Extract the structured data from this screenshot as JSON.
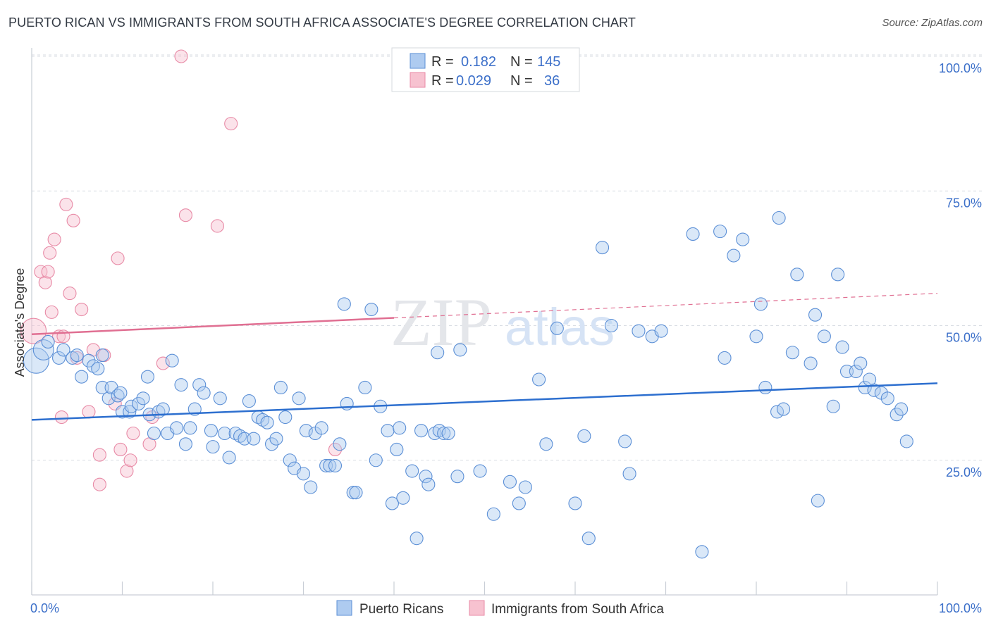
{
  "title": "PUERTO RICAN VS IMMIGRANTS FROM SOUTH AFRICA ASSOCIATE'S DEGREE CORRELATION CHART",
  "source": "Source: ZipAtlas.com",
  "watermark": {
    "zip": "ZIP",
    "atlas": "atlas"
  },
  "colors": {
    "blue_fill": "#aecbf0",
    "blue_stroke": "#5b8fd6",
    "blue_line": "#2d6fcf",
    "pink_fill": "#f7c2d0",
    "pink_stroke": "#e88aa6",
    "pink_line": "#e06f92",
    "grid": "#d9dde3",
    "tick_text": "#3b6fc9"
  },
  "legend": {
    "rows": [
      {
        "r_label": "R =",
        "r_value": "0.182",
        "n_label": "N =",
        "n_value": "145",
        "color": "blue"
      },
      {
        "r_label": "R =",
        "r_value": "0.029",
        "n_label": "N =",
        "n_value": "36",
        "color": "pink"
      }
    ]
  },
  "chart_data": {
    "type": "scatter",
    "xlabel": "",
    "ylabel": "Associate's Degree",
    "xlim": [
      0,
      100
    ],
    "ylim": [
      0,
      100
    ],
    "x_ticks": [
      {
        "value": 0,
        "label": "0.0%"
      },
      {
        "value": 100,
        "label": "100.0%"
      }
    ],
    "y_ticks": [
      {
        "value": 25,
        "label": "25.0%"
      },
      {
        "value": 50,
        "label": "50.0%"
      },
      {
        "value": 75,
        "label": "75.0%"
      },
      {
        "value": 100,
        "label": "100.0%"
      }
    ],
    "grid": true,
    "legend_position": "top-center",
    "series": [
      {
        "name": "Puerto Ricans",
        "color": "blue",
        "trend": {
          "x": [
            0,
            100
          ],
          "y": [
            32.5,
            39.3
          ],
          "solid_to": 100
        },
        "points": [
          [
            0.5,
            43.5,
            2
          ],
          [
            1.3,
            45.5,
            1.6
          ],
          [
            1.8,
            47,
            1
          ],
          [
            3,
            44,
            1
          ],
          [
            3.5,
            45.5,
            1
          ],
          [
            4.5,
            44,
            1
          ],
          [
            5,
            44.5,
            1
          ],
          [
            5.5,
            40.5,
            1
          ],
          [
            6.3,
            43.5,
            1
          ],
          [
            6.8,
            42.5,
            1
          ],
          [
            7.3,
            42,
            1
          ],
          [
            7.8,
            44.5,
            1
          ],
          [
            7.8,
            38.5,
            1
          ],
          [
            8.5,
            36.5,
            1
          ],
          [
            8.8,
            38.5,
            1
          ],
          [
            9.5,
            37,
            1
          ],
          [
            9.8,
            37.5,
            1
          ],
          [
            10,
            34,
            1
          ],
          [
            10.8,
            34,
            1
          ],
          [
            11,
            35,
            1
          ],
          [
            11.8,
            35.5,
            1
          ],
          [
            12.3,
            36.5,
            1
          ],
          [
            12.8,
            40.5,
            1
          ],
          [
            13,
            33.5,
            1
          ],
          [
            13.5,
            30,
            1
          ],
          [
            14,
            34,
            1
          ],
          [
            14.5,
            34.5,
            1
          ],
          [
            15,
            30,
            1
          ],
          [
            15.5,
            43.5,
            1
          ],
          [
            16,
            31,
            1
          ],
          [
            16.5,
            39,
            1
          ],
          [
            17,
            28,
            1
          ],
          [
            17.5,
            31,
            1
          ],
          [
            18,
            34.5,
            1
          ],
          [
            18.5,
            39,
            1
          ],
          [
            19,
            37.5,
            1
          ],
          [
            19.8,
            30.5,
            1
          ],
          [
            20,
            27.5,
            1
          ],
          [
            20.8,
            36.5,
            1
          ],
          [
            21.3,
            30,
            1
          ],
          [
            21.8,
            25.5,
            1
          ],
          [
            22.5,
            30,
            1
          ],
          [
            23,
            29.5,
            1
          ],
          [
            23.5,
            29,
            1
          ],
          [
            24,
            36,
            1
          ],
          [
            24.5,
            29,
            1
          ],
          [
            25,
            33,
            1
          ],
          [
            25.5,
            32.5,
            1
          ],
          [
            26,
            32,
            1
          ],
          [
            26.5,
            28,
            1
          ],
          [
            27,
            29,
            1
          ],
          [
            27.5,
            38.5,
            1
          ],
          [
            28,
            33,
            1
          ],
          [
            28.5,
            25,
            1
          ],
          [
            29,
            23.5,
            1
          ],
          [
            29.5,
            36.5,
            1
          ],
          [
            30,
            22.5,
            1
          ],
          [
            30.3,
            30.5,
            1
          ],
          [
            30.8,
            20,
            1
          ],
          [
            31.3,
            30,
            1
          ],
          [
            32,
            31,
            1
          ],
          [
            32.5,
            24,
            1
          ],
          [
            32.9,
            24,
            1
          ],
          [
            33.5,
            24,
            1
          ],
          [
            34,
            28,
            1
          ],
          [
            34.5,
            54,
            1
          ],
          [
            34.8,
            35.5,
            1
          ],
          [
            35.5,
            19,
            1
          ],
          [
            35.8,
            19,
            1
          ],
          [
            36.8,
            38.5,
            1
          ],
          [
            37.5,
            53,
            1
          ],
          [
            38,
            25,
            1
          ],
          [
            38.5,
            35,
            1
          ],
          [
            39.3,
            30.5,
            1
          ],
          [
            39.8,
            17,
            1
          ],
          [
            40.3,
            27,
            1
          ],
          [
            40.6,
            31,
            1
          ],
          [
            41,
            18,
            1
          ],
          [
            42,
            23,
            1
          ],
          [
            42.5,
            10.5,
            1
          ],
          [
            43,
            30.5,
            1
          ],
          [
            43.5,
            22,
            1
          ],
          [
            43.8,
            20.5,
            1
          ],
          [
            44.5,
            30,
            1
          ],
          [
            44.8,
            45,
            1
          ],
          [
            45,
            30.5,
            1
          ],
          [
            45.5,
            30,
            1
          ],
          [
            46,
            30,
            1
          ],
          [
            47,
            22,
            1
          ],
          [
            47.3,
            45.5,
            1
          ],
          [
            49.5,
            23,
            1
          ],
          [
            51,
            15,
            1
          ],
          [
            52.8,
            21,
            1
          ],
          [
            53.8,
            17,
            1
          ],
          [
            54.5,
            20,
            1
          ],
          [
            56,
            40,
            1
          ],
          [
            56.8,
            28,
            1
          ],
          [
            58,
            49.5,
            1
          ],
          [
            60,
            17,
            1
          ],
          [
            61,
            29.5,
            1
          ],
          [
            61.5,
            10.5,
            1
          ],
          [
            63,
            64.5,
            1
          ],
          [
            64,
            50,
            1
          ],
          [
            65.5,
            28.5,
            1
          ],
          [
            66,
            22.5,
            1
          ],
          [
            67,
            49,
            1
          ],
          [
            68.5,
            48,
            1
          ],
          [
            69.5,
            49,
            1
          ],
          [
            73,
            67,
            1
          ],
          [
            74,
            8,
            1
          ],
          [
            76,
            67.5,
            1
          ],
          [
            76.5,
            44,
            1
          ],
          [
            77.5,
            63,
            1
          ],
          [
            78.5,
            66,
            1
          ],
          [
            80,
            48,
            1
          ],
          [
            80.5,
            54,
            1
          ],
          [
            81,
            38.5,
            1
          ],
          [
            82.3,
            34,
            1
          ],
          [
            82.5,
            70,
            1
          ],
          [
            83,
            34.5,
            1
          ],
          [
            84,
            45,
            1
          ],
          [
            84.5,
            59.5,
            1
          ],
          [
            86,
            43,
            1
          ],
          [
            86.5,
            52,
            1
          ],
          [
            86.8,
            17.5,
            1
          ],
          [
            87.5,
            48,
            1
          ],
          [
            88.5,
            35,
            1
          ],
          [
            89,
            59.5,
            1
          ],
          [
            89.5,
            46,
            1
          ],
          [
            90,
            41.5,
            1
          ],
          [
            91,
            41.5,
            1
          ],
          [
            91.5,
            43,
            1
          ],
          [
            92,
            38.5,
            1
          ],
          [
            92.5,
            40,
            1
          ],
          [
            93,
            38,
            1
          ],
          [
            93.8,
            37.5,
            1
          ],
          [
            94.5,
            36.5,
            1
          ],
          [
            95.5,
            33.5,
            1
          ],
          [
            96,
            34.5,
            1
          ],
          [
            96.6,
            28.5,
            1
          ]
        ]
      },
      {
        "name": "Immigrants from South Africa",
        "color": "pink",
        "trend": {
          "x": [
            0,
            100
          ],
          "y": [
            48.4,
            56
          ],
          "solid_to": 40
        },
        "points": [
          [
            0.2,
            49,
            2
          ],
          [
            1,
            60,
            1
          ],
          [
            1.5,
            58,
            1
          ],
          [
            1.8,
            60,
            1
          ],
          [
            2,
            63.5,
            1
          ],
          [
            2.2,
            52.5,
            1
          ],
          [
            2.5,
            66,
            1
          ],
          [
            3,
            48,
            1
          ],
          [
            3.5,
            48,
            1
          ],
          [
            3.3,
            33,
            1
          ],
          [
            3.8,
            72.5,
            1
          ],
          [
            4.2,
            56,
            1
          ],
          [
            4.6,
            69.5,
            1
          ],
          [
            5,
            44,
            1
          ],
          [
            5.5,
            53,
            1
          ],
          [
            6.3,
            34,
            1
          ],
          [
            6.8,
            45.5,
            1
          ],
          [
            7.5,
            20.5,
            1
          ],
          [
            7.5,
            26,
            1
          ],
          [
            8,
            44.5,
            1
          ],
          [
            9.2,
            35.5,
            1
          ],
          [
            9.5,
            62.5,
            1
          ],
          [
            9.8,
            27,
            1
          ],
          [
            10.5,
            23,
            1
          ],
          [
            10.9,
            25,
            1
          ],
          [
            11.2,
            30,
            1
          ],
          [
            13,
            28,
            1
          ],
          [
            13.3,
            33,
            1
          ],
          [
            14.5,
            43,
            1
          ],
          [
            16.5,
            100,
            1
          ],
          [
            17,
            70.5,
            1
          ],
          [
            20.5,
            68.5,
            1
          ],
          [
            22,
            87.5,
            1
          ],
          [
            33.5,
            27,
            1
          ]
        ]
      }
    ]
  },
  "bottom_legend": [
    {
      "label": "Puerto Ricans",
      "color": "blue"
    },
    {
      "label": "Immigrants from South Africa",
      "color": "pink"
    }
  ]
}
